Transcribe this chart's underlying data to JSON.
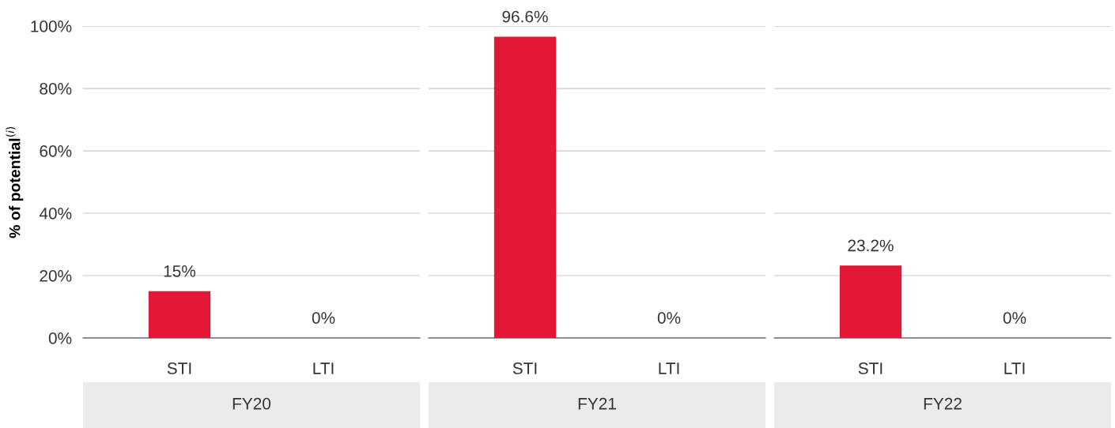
{
  "chart_data": [
    {
      "type": "bar",
      "title": "FY20",
      "ylabel": "% of potential$^{(i)}$",
      "categories": [
        "STI",
        "LTI"
      ],
      "values": [
        15,
        0
      ],
      "value_labels": [
        "15%",
        "0%"
      ],
      "color": "#e31837",
      "ylim": [
        0,
        100
      ],
      "yticks": [
        {
          "value": 0,
          "label": "0%"
        },
        {
          "value": 20,
          "label": "20%"
        },
        {
          "value": 40,
          "label": "40%"
        },
        {
          "value": 60,
          "label": "60%"
        },
        {
          "value": 80,
          "label": "80%"
        },
        {
          "value": 100,
          "label": "100%"
        }
      ],
      "grid": "y",
      "legend": false
    },
    {
      "type": "bar",
      "title": "FY21",
      "categories": [
        "STI",
        "LTI"
      ],
      "values": [
        96.6,
        0
      ],
      "value_labels": [
        "96.6%",
        "0%"
      ],
      "color": "#e31837",
      "ylim": [
        0,
        100
      ],
      "yticks": [
        0,
        20,
        40,
        60,
        80,
        100
      ],
      "grid": "y",
      "legend": false,
      "tick_labels": "x"
    },
    {
      "type": "bar",
      "title": "FY22",
      "categories": [
        "STI",
        "LTI"
      ],
      "values": [
        23.2,
        0
      ],
      "value_labels": [
        "23.2%",
        "0%"
      ],
      "color": "#e31837",
      "ylim": [
        0,
        100
      ],
      "yticks": [
        0,
        20,
        40,
        60,
        80,
        100
      ],
      "grid": "y",
      "legend": false,
      "tick_labels": "x"
    }
  ]
}
